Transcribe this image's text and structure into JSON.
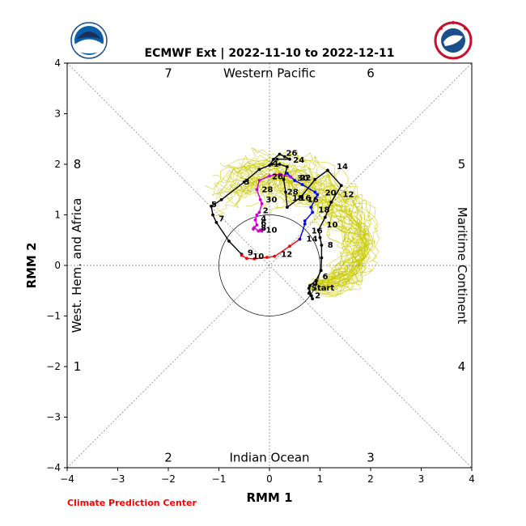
{
  "chart_data": {
    "type": "line",
    "title": "ECMWF Ext | 2022-11-10 to 2022-12-11",
    "xlabel": "RMM 1",
    "ylabel": "RMM 2",
    "xlim": [
      -4,
      4
    ],
    "ylim": [
      -4,
      4
    ],
    "xticks": [
      "−4",
      "−3",
      "−2",
      "−1",
      "0",
      "1",
      "2",
      "3",
      "4"
    ],
    "yticks": [
      "−4",
      "−3",
      "−2",
      "−1",
      "0",
      "1",
      "2",
      "3",
      "4"
    ],
    "grid": "zero-lines and phase diagonals (dashed)",
    "unit_circle_radius": 1,
    "phase_numbers": [
      "1",
      "2",
      "3",
      "4",
      "5",
      "6",
      "7",
      "8"
    ],
    "regions": {
      "top": "Western Pacific",
      "bottom": "Indian Ocean",
      "left": "West. Hem. and Africa",
      "right": "Maritime Continent"
    },
    "credit": "Climate Prediction Center",
    "colors": {
      "ensemble": "#c8c800",
      "segment_1": "#000000",
      "segment_2": "#ff0000",
      "segment_3": "#0000ff",
      "segment_4": "#cc00cc",
      "segment_5": "#000000"
    },
    "start_label": "Start",
    "series": [
      {
        "color": "#000000",
        "points": [
          {
            "x": 0.78,
            "y": -0.45,
            "label": "Start"
          },
          {
            "x": 0.83,
            "y": -0.6
          },
          {
            "x": 0.85,
            "y": -0.66,
            "label": "2"
          },
          {
            "x": 0.78,
            "y": -0.55
          },
          {
            "x": 0.8,
            "y": -0.4,
            "label": "4"
          },
          {
            "x": 0.92,
            "y": -0.3
          },
          {
            "x": 1.02,
            "y": -0.1,
            "label": "6"
          },
          {
            "x": 1.03,
            "y": 0.15
          },
          {
            "x": 1.03,
            "y": 0.4,
            "label": "8"
          },
          {
            "x": 1.0,
            "y": 0.55
          },
          {
            "x": 0.97,
            "y": 0.7,
            "label": "10"
          },
          {
            "x": 1.1,
            "y": 0.95
          },
          {
            "x": 1.22,
            "y": 1.25,
            "label": "12"
          },
          {
            "x": 1.42,
            "y": 1.58
          },
          {
            "x": 1.15,
            "y": 1.88,
            "label": "14"
          }
        ]
      },
      {
        "color": "#000000",
        "points": [
          {
            "x": 1.15,
            "y": 1.88,
            "label": "14"
          },
          {
            "x": 0.9,
            "y": 1.7
          },
          {
            "x": 0.62,
            "y": 1.35,
            "label": "16"
          },
          {
            "x": 0.35,
            "y": 1.15
          },
          {
            "x": 0.32,
            "y": 1.45,
            "label": "18"
          },
          {
            "x": 0.28,
            "y": 1.7
          },
          {
            "x": 0.35,
            "y": 1.95,
            "label": "20"
          },
          {
            "x": 0.2,
            "y": 2.0
          },
          {
            "x": 0.05,
            "y": 2.0,
            "label": "22"
          },
          {
            "x": 0.15,
            "y": 2.1
          },
          {
            "x": 0.4,
            "y": 2.1,
            "label": "24"
          },
          {
            "x": 0.3,
            "y": 2.15
          },
          {
            "x": 0.2,
            "y": 2.2,
            "label": "26"
          },
          {
            "x": 0.08,
            "y": 2.1
          },
          {
            "x": 0.0,
            "y": 1.98,
            "label": "1"
          },
          {
            "x": -0.2,
            "y": 1.9
          },
          {
            "x": -0.5,
            "y": 1.65,
            "label": "3"
          },
          {
            "x": -0.95,
            "y": 1.3
          },
          {
            "x": -1.15,
            "y": 1.17,
            "label": "5"
          },
          {
            "x": -1.12,
            "y": 1.0
          },
          {
            "x": -1.05,
            "y": 0.85,
            "label": "7"
          },
          {
            "x": -0.8,
            "y": 0.48
          },
          {
            "x": -0.55,
            "y": 0.22,
            "label": "9"
          }
        ]
      },
      {
        "color": "#ff0000",
        "points": [
          {
            "x": -0.55,
            "y": 0.2,
            "label": "9"
          },
          {
            "x": -0.45,
            "y": 0.14
          },
          {
            "x": -0.3,
            "y": 0.13,
            "label": "10"
          },
          {
            "x": -0.05,
            "y": 0.16
          },
          {
            "x": 0.1,
            "y": 0.18,
            "label": "12"
          },
          {
            "x": 0.4,
            "y": 0.38
          },
          {
            "x": 0.6,
            "y": 0.52,
            "label": "14"
          }
        ]
      },
      {
        "color": "#0000ff",
        "points": [
          {
            "x": 0.6,
            "y": 0.52,
            "label": "14"
          },
          {
            "x": 0.7,
            "y": 0.82
          },
          {
            "x": 0.7,
            "y": 0.88,
            "label": "16"
          },
          {
            "x": 0.85,
            "y": 1.05
          },
          {
            "x": 0.82,
            "y": 1.15,
            "label": "18"
          },
          {
            "x": 0.95,
            "y": 1.4
          },
          {
            "x": 0.9,
            "y": 1.45,
            "label": "20"
          },
          {
            "x": 0.65,
            "y": 1.6
          },
          {
            "x": 0.5,
            "y": 1.68,
            "label": "22"
          },
          {
            "x": 0.35,
            "y": 1.82
          },
          {
            "x": 0.42,
            "y": 1.75,
            "label": "24"
          }
        ]
      },
      {
        "color": "#cc00cc",
        "points": [
          {
            "x": 0.42,
            "y": 1.75,
            "label": "24"
          },
          {
            "x": 0.2,
            "y": 1.8
          },
          {
            "x": 0.0,
            "y": 1.77,
            "label": "26"
          },
          {
            "x": -0.2,
            "y": 1.68
          },
          {
            "x": -0.25,
            "y": 1.5,
            "label": "28"
          },
          {
            "x": -0.18,
            "y": 1.3
          },
          {
            "x": -0.15,
            "y": 1.22,
            "label": "30"
          },
          {
            "x": -0.2,
            "y": 1.05
          },
          {
            "x": -0.25,
            "y": 1.0,
            "label": "2"
          },
          {
            "x": -0.28,
            "y": 0.9
          },
          {
            "x": -0.25,
            "y": 0.8,
            "label": "4"
          },
          {
            "x": -0.32,
            "y": 0.72
          },
          {
            "x": -0.3,
            "y": 0.75,
            "label": "6"
          },
          {
            "x": -0.22,
            "y": 0.68
          },
          {
            "x": -0.18,
            "y": 0.7,
            "label": "8"
          },
          {
            "x": -0.15,
            "y": 0.68
          },
          {
            "x": -0.12,
            "y": 0.72,
            "label": "10"
          }
        ]
      }
    ],
    "labels": [
      {
        "x": 0.78,
        "y": -0.45,
        "text": "Start"
      },
      {
        "x": 0.85,
        "y": -0.6,
        "text": "2"
      },
      {
        "x": 0.8,
        "y": -0.35,
        "text": "4"
      },
      {
        "x": 1.0,
        "y": -0.22,
        "text": "6"
      },
      {
        "x": 1.1,
        "y": 0.4,
        "text": "8"
      },
      {
        "x": 1.08,
        "y": 0.8,
        "text": "10"
      },
      {
        "x": 1.4,
        "y": 1.4,
        "text": "12"
      },
      {
        "x": 1.28,
        "y": 1.95,
        "text": "14"
      },
      {
        "x": 0.7,
        "y": 1.3,
        "text": "16"
      },
      {
        "x": 0.92,
        "y": 1.1,
        "text": "18"
      },
      {
        "x": 1.05,
        "y": 1.43,
        "text": "20"
      },
      {
        "x": 0.55,
        "y": 1.73,
        "text": "22"
      },
      {
        "x": 0.42,
        "y": 2.08,
        "text": "24"
      },
      {
        "x": 0.28,
        "y": 2.22,
        "text": "26"
      },
      {
        "x": 0.03,
        "y": 2.0,
        "text": "1"
      },
      {
        "x": -0.55,
        "y": 1.65,
        "text": "3"
      },
      {
        "x": -1.2,
        "y": 1.2,
        "text": "5"
      },
      {
        "x": -1.05,
        "y": 0.92,
        "text": "7"
      },
      {
        "x": -0.48,
        "y": 0.25,
        "text": "9"
      },
      {
        "x": -0.38,
        "y": 0.18,
        "text": "10"
      },
      {
        "x": 0.18,
        "y": 0.22,
        "text": "12"
      },
      {
        "x": 0.68,
        "y": 0.52,
        "text": "14"
      },
      {
        "x": 0.78,
        "y": 0.68,
        "text": "16"
      },
      {
        "x": 0.55,
        "y": 1.33,
        "text": "16"
      },
      {
        "x": 0.4,
        "y": 1.33,
        "text": "18"
      },
      {
        "x": 0.3,
        "y": 1.45,
        "text": "28"
      },
      {
        "x": 0.5,
        "y": 1.72,
        "text": "30"
      },
      {
        "x": 0.0,
        "y": 1.75,
        "text": "26"
      },
      {
        "x": -0.2,
        "y": 1.5,
        "text": "28"
      },
      {
        "x": -0.12,
        "y": 1.3,
        "text": "30"
      },
      {
        "x": -0.18,
        "y": 1.08,
        "text": "2"
      },
      {
        "x": -0.22,
        "y": 0.92,
        "text": "4"
      },
      {
        "x": -0.22,
        "y": 0.83,
        "text": "6"
      },
      {
        "x": -0.22,
        "y": 0.74,
        "text": "8"
      },
      {
        "x": -0.12,
        "y": 0.7,
        "text": "10"
      }
    ]
  }
}
